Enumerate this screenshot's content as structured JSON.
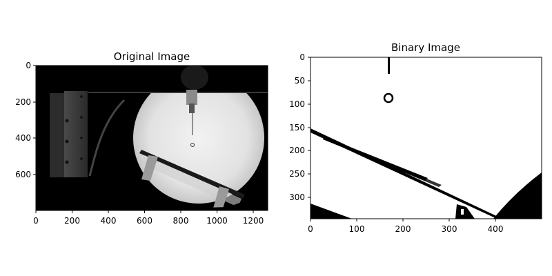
{
  "panels": [
    {
      "title": "Original Image",
      "x_ticks": [
        "0",
        "200",
        "400",
        "600",
        "800",
        "1000",
        "1200"
      ],
      "y_ticks": [
        "0",
        "200",
        "400",
        "600"
      ]
    },
    {
      "title": "Binary Image",
      "x_ticks": [
        "0",
        "100",
        "200",
        "300",
        "400"
      ],
      "y_ticks": [
        "0",
        "50",
        "100",
        "150",
        "200",
        "250",
        "300"
      ]
    }
  ],
  "colors": {
    "background": "#ffffff",
    "dark": "#000000",
    "glow": "#e6e6e6"
  }
}
